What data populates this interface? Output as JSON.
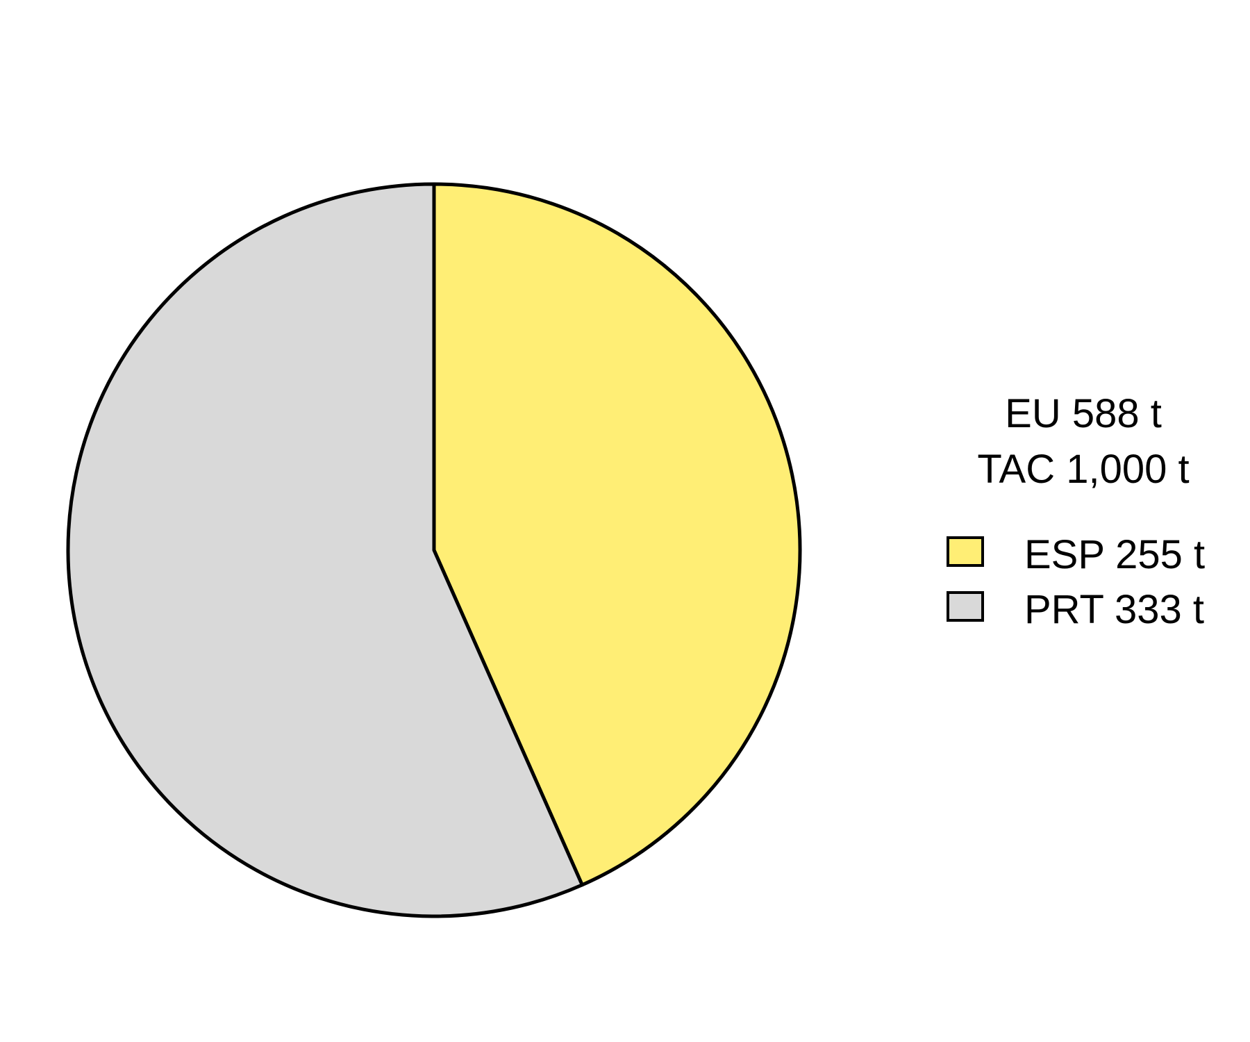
{
  "chart_data": {
    "type": "pie",
    "title_lines": [
      "EU 588 t",
      "TAC 1,000 t"
    ],
    "slices": [
      {
        "label": "ESP 255 t",
        "value": 255,
        "color": "#FFEE75"
      },
      {
        "label": "PRT 333 t",
        "value": 333,
        "color": "#D9D9D9"
      }
    ],
    "start_angle": "12 o'clock",
    "direction": "clockwise",
    "legend_position": "right",
    "outline_color": "#000000"
  }
}
